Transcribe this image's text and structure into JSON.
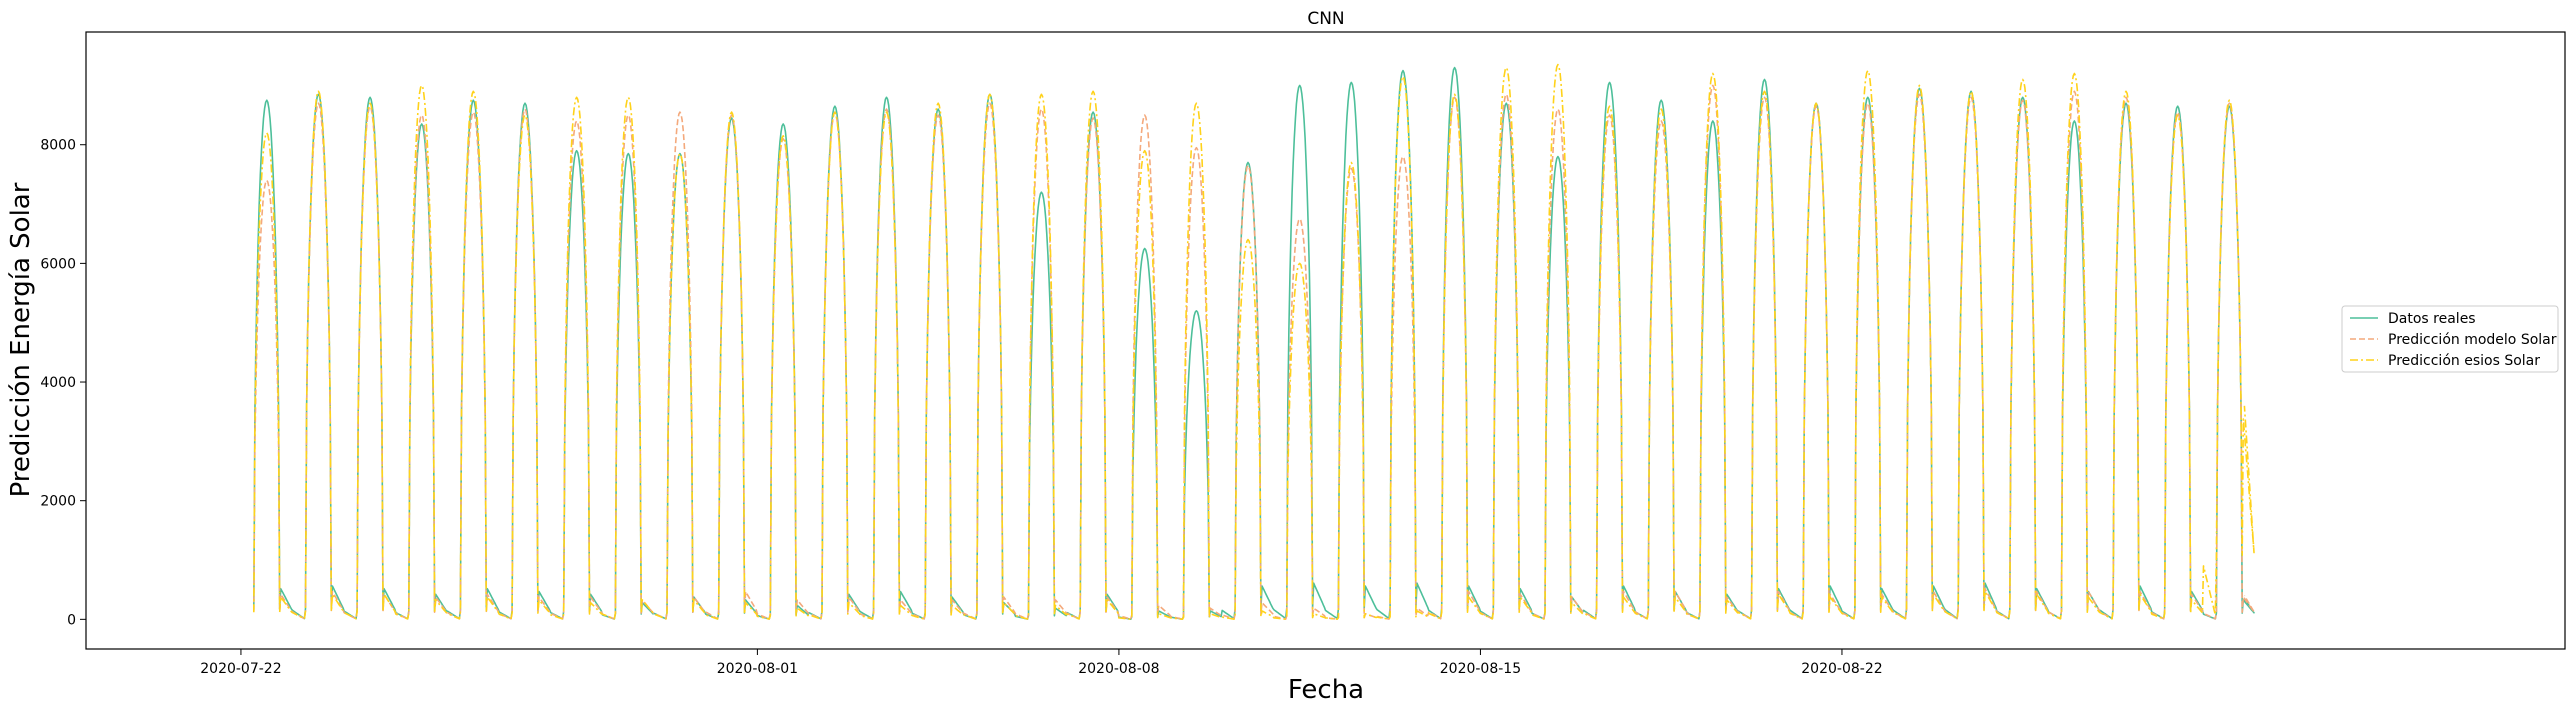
{
  "chart_data": {
    "type": "line",
    "title": "CNN",
    "xlabel": "Fecha",
    "ylabel": "Predicción Energía Solar",
    "x_range": [
      "2020-07-19",
      "2020-09-05"
    ],
    "ylim": [
      -500,
      9900
    ],
    "x_ticks": [
      "2020-07-22",
      "2020-08-01",
      "2020-08-08",
      "2020-08-15",
      "2020-08-22"
    ],
    "y_ticks": [
      0,
      2000,
      4000,
      6000,
      8000
    ],
    "grid": false,
    "legend_position": "center-right",
    "first_day": "2020-07-22",
    "series": [
      {
        "name": "Datos reales",
        "color": "#4dbf9a",
        "style": "solid",
        "daily_peaks": [
          8750,
          8850,
          8800,
          8350,
          8750,
          8700,
          7900,
          7850,
          7850,
          8450,
          8350,
          8650,
          8800,
          8600,
          8850,
          7200,
          8550,
          6250,
          5200,
          7700,
          9000,
          9050,
          9250,
          9300,
          8700,
          7800,
          9050,
          8750,
          8400,
          9100,
          8700,
          8800,
          8950,
          8900,
          8800,
          8400,
          8700,
          8650,
          8650
        ],
        "night_lows": [
          550,
          600,
          550,
          450,
          550,
          500,
          450,
          300,
          400,
          350,
          250,
          450,
          500,
          400,
          300,
          200,
          450,
          150,
          150,
          600,
          650,
          600,
          650,
          600,
          550,
          400,
          600,
          500,
          450,
          550,
          600,
          550,
          600,
          650,
          550,
          500,
          600,
          500,
          350
        ]
      },
      {
        "name": "Predicción modelo Solar",
        "color": "#f4a97c",
        "style": "dashed",
        "daily_peaks": [
          7400,
          8700,
          8650,
          8500,
          8550,
          8600,
          8400,
          8500,
          8550,
          8500,
          8100,
          8550,
          8600,
          8500,
          8700,
          8600,
          8450,
          8500,
          7950,
          7650,
          6750,
          7600,
          7800,
          8800,
          8850,
          8600,
          8500,
          8400,
          9000,
          8800,
          8650,
          8700,
          8850,
          8800,
          8750,
          8900,
          8800,
          8550,
          8700
        ],
        "night_lows": [
          450,
          500,
          450,
          400,
          450,
          400,
          400,
          350,
          400,
          500,
          350,
          400,
          350,
          350,
          400,
          350,
          400,
          250,
          200,
          300,
          200,
          100,
          200,
          500,
          450,
          400,
          500,
          500,
          400,
          500,
          450,
          450,
          500,
          550,
          500,
          500,
          500,
          450,
          400
        ]
      },
      {
        "name": "Predicción esios Solar",
        "color": "#ffd21a",
        "style": "dashdot",
        "daily_peaks": [
          8200,
          8900,
          8700,
          9000,
          8900,
          8500,
          8800,
          8800,
          7850,
          8550,
          8150,
          8550,
          8550,
          8700,
          8850,
          8850,
          8900,
          7900,
          8700,
          6400,
          6000,
          7700,
          9150,
          8850,
          9300,
          9350,
          8650,
          8600,
          9200,
          8900,
          8700,
          9250,
          9000,
          8900,
          9100,
          9200,
          8900,
          8500,
          8750
        ],
        "night_lows": [
          400,
          450,
          450,
          350,
          400,
          350,
          300,
          350,
          350,
          300,
          200,
          300,
          250,
          250,
          300,
          250,
          350,
          100,
          100,
          150,
          100,
          100,
          150,
          400,
          400,
          300,
          400,
          400,
          350,
          450,
          400,
          400,
          450,
          500,
          450,
          400,
          450,
          350,
          3600
        ]
      }
    ]
  }
}
